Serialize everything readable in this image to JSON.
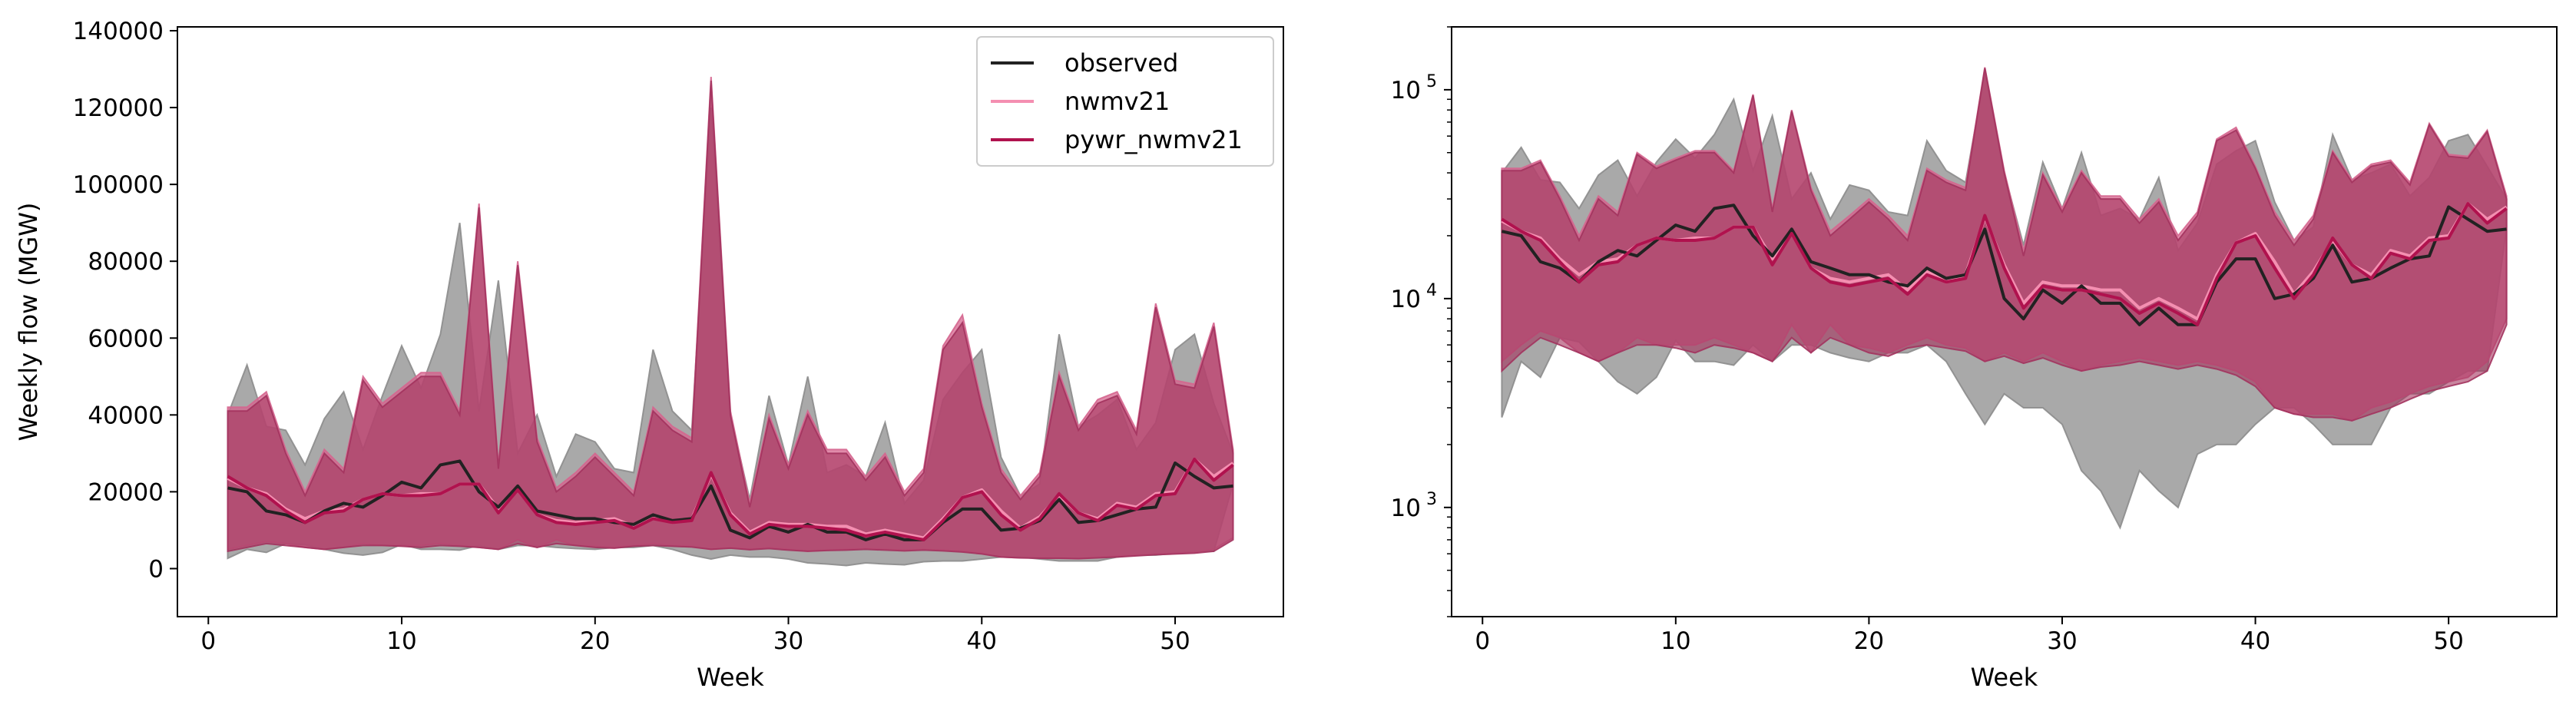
{
  "chart_data": [
    {
      "type": "area",
      "xlabel": "Week",
      "ylabel": "Weekly flow (MGW)",
      "yscale": "linear",
      "xlim": [
        -1.6,
        55.6
      ],
      "ylim": [
        -12500,
        141000
      ],
      "xticks": [
        0,
        10,
        20,
        30,
        40,
        50
      ],
      "yticks": [
        0,
        20000,
        40000,
        60000,
        80000,
        100000,
        120000,
        140000
      ],
      "ytick_labels": [
        "0",
        "20000",
        "40000",
        "60000",
        "80000",
        "100000",
        "120000",
        "140000"
      ],
      "grid": false,
      "legend": {
        "placement": "top-right",
        "entries": [
          "observed",
          "nwmv21",
          "pywr_nwmv21"
        ]
      },
      "x": [
        1,
        2,
        3,
        4,
        5,
        6,
        7,
        8,
        9,
        10,
        11,
        12,
        13,
        14,
        15,
        16,
        17,
        18,
        19,
        20,
        21,
        22,
        23,
        24,
        25,
        26,
        27,
        28,
        29,
        30,
        31,
        32,
        33,
        34,
        35,
        36,
        37,
        38,
        39,
        40,
        41,
        42,
        43,
        44,
        45,
        46,
        47,
        48,
        49,
        50,
        51,
        52,
        53
      ],
      "series": [
        {
          "name": "observed",
          "role": "median",
          "color": "#222222",
          "values": [
            21000,
            20000,
            15000,
            14000,
            12000,
            15000,
            17000,
            16000,
            19000,
            22500,
            21000,
            27000,
            28000,
            20000,
            16000,
            21500,
            15000,
            14000,
            13000,
            13000,
            12000,
            11500,
            14000,
            12500,
            13000,
            21500,
            10000,
            8000,
            11000,
            9500,
            11500,
            9500,
            9500,
            7500,
            9000,
            7500,
            7500,
            12000,
            15500,
            15500,
            10000,
            10500,
            12500,
            18000,
            12000,
            12500,
            14000,
            15500,
            16000,
            27500,
            24000,
            21000,
            21500
          ]
        },
        {
          "name": "nwmv21",
          "role": "median",
          "color": "#f48fb1",
          "values": [
            23500,
            21000,
            19500,
            15500,
            13000,
            15000,
            15500,
            18000,
            19500,
            19000,
            19500,
            19500,
            22000,
            22000,
            15500,
            20500,
            14000,
            12500,
            12000,
            12500,
            13000,
            11000,
            13500,
            12000,
            13000,
            24500,
            14500,
            9500,
            12000,
            11500,
            11500,
            11000,
            11000,
            9000,
            10000,
            9000,
            8000,
            13000,
            18500,
            20500,
            15000,
            10500,
            13500,
            19000,
            14500,
            13000,
            17000,
            16000,
            19500,
            20000,
            28500,
            24000,
            27500
          ]
        },
        {
          "name": "pywr_nwmv21",
          "role": "median",
          "color": "#b0124e",
          "values": [
            24000,
            21000,
            19000,
            15000,
            12000,
            14500,
            15000,
            18000,
            19500,
            19000,
            19000,
            19500,
            22000,
            22000,
            14500,
            20500,
            14000,
            12000,
            11500,
            12000,
            12500,
            10500,
            13000,
            12000,
            12500,
            25000,
            14000,
            9000,
            11500,
            11000,
            11000,
            10500,
            10000,
            8500,
            9500,
            8500,
            7500,
            12500,
            18500,
            20000,
            14000,
            10000,
            13000,
            19500,
            14500,
            12500,
            16500,
            15500,
            19000,
            19500,
            28500,
            23000,
            27000
          ]
        },
        {
          "name": "observed",
          "role": "range",
          "color": "#8c8c8c",
          "lower": [
            2700,
            5000,
            4200,
            6500,
            6200,
            5000,
            4000,
            3500,
            4200,
            6300,
            5000,
            5000,
            4800,
            6000,
            5000,
            6000,
            6000,
            5500,
            5200,
            5000,
            5500,
            5500,
            6000,
            5000,
            3500,
            2500,
            3500,
            3000,
            3000,
            2500,
            1500,
            1200,
            800,
            1500,
            1200,
            1000,
            1800,
            2000,
            2000,
            2500,
            3000,
            3000,
            2500,
            2000,
            2000,
            2000,
            3000,
            3500,
            3500,
            4000,
            4500,
            4500,
            22000
          ],
          "upper": [
            40000,
            53000,
            37000,
            36000,
            27000,
            39000,
            46000,
            31000,
            45000,
            58000,
            47000,
            61000,
            90000,
            41000,
            75000,
            30000,
            40000,
            24000,
            35000,
            33000,
            26000,
            25000,
            57000,
            41000,
            36000,
            120000,
            40000,
            18000,
            45000,
            27000,
            50000,
            25000,
            27000,
            24000,
            38000,
            17000,
            23000,
            44000,
            51000,
            57000,
            29000,
            19000,
            22000,
            61000,
            37000,
            40000,
            44000,
            31000,
            38000,
            57000,
            61000,
            43000,
            30000
          ]
        },
        {
          "name": "nwmv21",
          "role": "range",
          "color": "#d5668f",
          "lower": [
            5000,
            6000,
            7000,
            6500,
            5500,
            5000,
            5500,
            6500,
            6000,
            6000,
            6000,
            6500,
            6000,
            5500,
            5000,
            7500,
            5500,
            7500,
            6000,
            5800,
            5500,
            6000,
            6500,
            6000,
            5800,
            5000,
            5500,
            5000,
            5500,
            5000,
            4500,
            4800,
            5000,
            5200,
            5000,
            4800,
            5000,
            4800,
            4500,
            4000,
            3000,
            2800,
            2800,
            2800,
            2600,
            3000,
            3200,
            3500,
            3800,
            4000,
            4200,
            5000,
            8000
          ],
          "upper": [
            42000,
            42000,
            46000,
            31000,
            20000,
            31000,
            26000,
            50000,
            43000,
            47000,
            51000,
            51000,
            41000,
            95000,
            27000,
            80000,
            34000,
            21000,
            25000,
            30000,
            25000,
            20000,
            42000,
            37000,
            34000,
            128000,
            41000,
            17000,
            40000,
            27000,
            41000,
            31000,
            31000,
            24000,
            30000,
            20000,
            26000,
            58000,
            66000,
            43000,
            26000,
            19000,
            25000,
            51000,
            37000,
            44000,
            46000,
            36000,
            69000,
            49000,
            48000,
            64000,
            31000
          ]
        },
        {
          "name": "pywr_nwmv21",
          "role": "range",
          "color": "#a3335e",
          "lower": [
            4500,
            5500,
            6500,
            6000,
            5500,
            5000,
            5500,
            6000,
            6000,
            5800,
            5500,
            6000,
            5800,
            5500,
            5000,
            6500,
            5500,
            6500,
            6000,
            5500,
            5300,
            5800,
            6000,
            5800,
            5600,
            5000,
            5300,
            4900,
            5200,
            4800,
            4500,
            4700,
            4800,
            5000,
            4800,
            4600,
            4800,
            4600,
            4300,
            3800,
            3000,
            2800,
            2700,
            2700,
            2600,
            2800,
            3000,
            3300,
            3600,
            3800,
            4000,
            4500,
            7500
          ],
          "upper": [
            41000,
            41000,
            45000,
            30000,
            19000,
            30000,
            25000,
            49000,
            42000,
            46000,
            50000,
            50000,
            40000,
            94000,
            26000,
            79000,
            33000,
            20000,
            24000,
            29000,
            24000,
            19000,
            41000,
            36000,
            33000,
            127000,
            40000,
            16000,
            39000,
            26000,
            40000,
            30000,
            30000,
            23000,
            29000,
            19000,
            25000,
            57000,
            64000,
            42000,
            25000,
            18000,
            24000,
            50000,
            36000,
            43000,
            45000,
            35000,
            68000,
            48000,
            47000,
            63000,
            30000
          ]
        }
      ]
    },
    {
      "type": "area",
      "xlabel": "Week",
      "ylabel": "",
      "yscale": "log",
      "xlim": [
        -1.6,
        55.6
      ],
      "ylim": [
        300,
        200000
      ],
      "xticks": [
        0,
        10,
        20,
        30,
        40,
        50
      ],
      "yticks": [
        1000,
        10000,
        100000
      ],
      "ytick_labels": [
        "10",
        "10",
        "10"
      ],
      "ytick_exponents": [
        "3",
        "4",
        "5"
      ],
      "grid": false,
      "series_ref": 0
    }
  ]
}
